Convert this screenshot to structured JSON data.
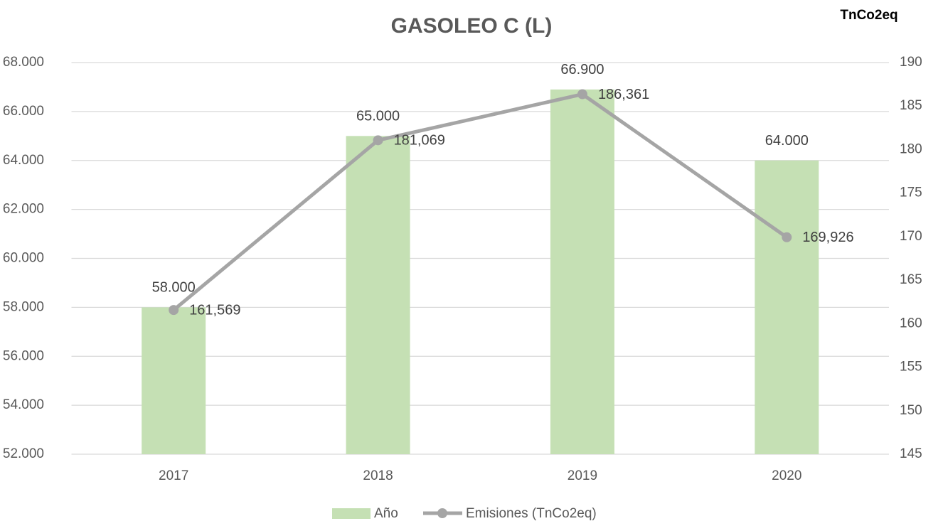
{
  "chart_data": {
    "type": "combo",
    "title": "GASOLEO C (L)",
    "y2_label": "TnCo2eq",
    "categories": [
      "2017",
      "2018",
      "2019",
      "2020"
    ],
    "series": [
      {
        "name": "Año",
        "type": "bar",
        "color": "#c5e0b4",
        "values": [
          58000,
          65000,
          66900,
          64000
        ],
        "value_labels": [
          "58.000",
          "65.000",
          "66.900",
          "64.000"
        ]
      },
      {
        "name": "Emisiones (TnCo2eq)",
        "type": "line",
        "axis": "y2",
        "color": "#a5a5a5",
        "values": [
          161.569,
          181.069,
          186.361,
          169.926
        ],
        "value_labels": [
          "161,569",
          "181,069",
          "186,361",
          "169,926"
        ]
      }
    ],
    "ylim": [
      52000,
      68000
    ],
    "yticks": [
      {
        "value": 52000,
        "label": "52.000"
      },
      {
        "value": 54000,
        "label": "54.000"
      },
      {
        "value": 56000,
        "label": "56.000"
      },
      {
        "value": 58000,
        "label": "58.000"
      },
      {
        "value": 60000,
        "label": "60.000"
      },
      {
        "value": 62000,
        "label": "62.000"
      },
      {
        "value": 64000,
        "label": "64.000"
      },
      {
        "value": 66000,
        "label": "66.000"
      },
      {
        "value": 68000,
        "label": "68.000"
      }
    ],
    "y2lim": [
      145,
      190
    ],
    "y2ticks": [
      145,
      150,
      155,
      160,
      165,
      170,
      175,
      180,
      185,
      190
    ],
    "grid": true,
    "legend": "bottom"
  }
}
